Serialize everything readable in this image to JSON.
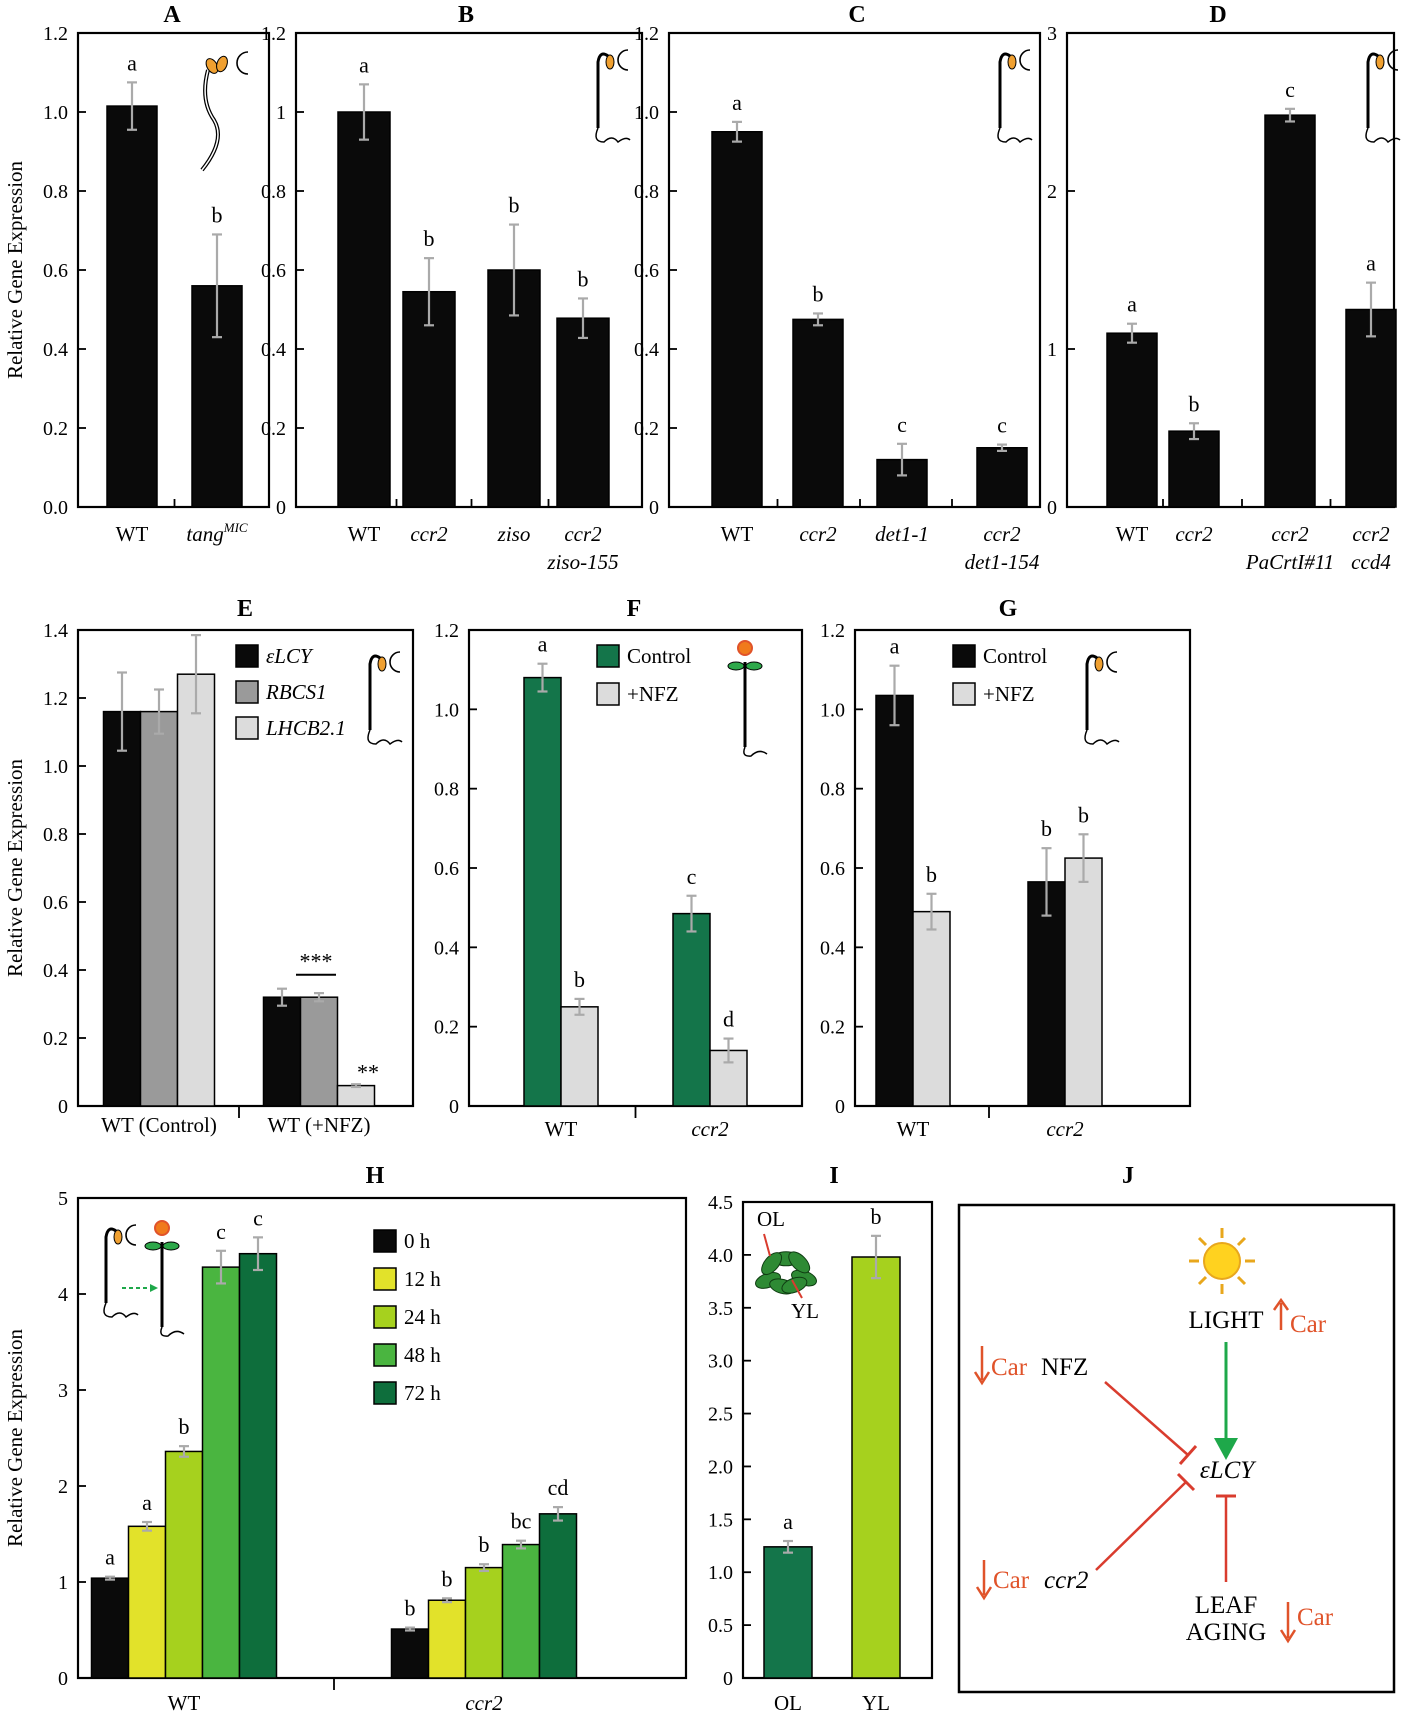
{
  "colors": {
    "black": "#0a0a0a",
    "dark_gray": "#9a9a9a",
    "light_gray": "#dcdcdc",
    "green": "#14754a",
    "yellow": "#e2e22a",
    "yellow_green": "#a6d11e",
    "mid_green": "#4ab540",
    "dark_green": "#0e6e3c",
    "arrow_green": "#1ea84a",
    "inhibit_red": "#d93c2e",
    "car_orange": "#e0532a",
    "error_bar": "#aaaaaa"
  },
  "chart_data": [
    {
      "panel": "A",
      "type": "bar",
      "ylabel": "Relative  Gene Expression",
      "ylim": [
        0,
        1.2
      ],
      "yticks": [
        "0.0",
        "0.2",
        "0.4",
        "0.6",
        "0.8",
        "1.0",
        "1.2"
      ],
      "categories": [
        "WT",
        "tang"
      ],
      "category_sup": [
        "",
        "MIC"
      ],
      "category_italic": [
        false,
        true
      ],
      "values": [
        1.015,
        0.56
      ],
      "errors": [
        0.06,
        0.13
      ],
      "letters": [
        "a",
        "b"
      ],
      "colors": [
        "#0a0a0a",
        "#0a0a0a"
      ],
      "icon": "etiolated-seedling-icon"
    },
    {
      "panel": "B",
      "type": "bar",
      "ylim": [
        0,
        1.2
      ],
      "yticks": [
        "0",
        "0.2",
        "0.4",
        "0.6",
        "0.8",
        "1",
        "1.2"
      ],
      "categories": [
        "WT",
        "ccr2",
        "ziso",
        "ccr2\nziso-155"
      ],
      "category_italic": [
        false,
        true,
        true,
        true
      ],
      "values": [
        1.0,
        0.545,
        0.6,
        0.478
      ],
      "errors": [
        0.07,
        0.085,
        0.115,
        0.05
      ],
      "letters": [
        "a",
        "b",
        "b",
        "b"
      ],
      "colors": [
        "#0a0a0a",
        "#0a0a0a",
        "#0a0a0a",
        "#0a0a0a"
      ],
      "icon": "dark-grown-seedling-icon"
    },
    {
      "panel": "C",
      "type": "bar",
      "ylim": [
        0,
        1.2
      ],
      "yticks": [
        "0",
        "0.2",
        "0.4",
        "0.6",
        "0.8",
        "1.0",
        "1.2"
      ],
      "categories": [
        "WT",
        "ccr2",
        "det1-1",
        "ccr2\ndet1-154"
      ],
      "category_italic": [
        false,
        true,
        true,
        true
      ],
      "values": [
        0.95,
        0.475,
        0.12,
        0.15
      ],
      "errors": [
        0.025,
        0.015,
        0.04,
        0.008
      ],
      "letters": [
        "a",
        "b",
        "c",
        "c"
      ],
      "colors": [
        "#0a0a0a",
        "#0a0a0a",
        "#0a0a0a",
        "#0a0a0a"
      ],
      "icon": "dark-grown-seedling-icon"
    },
    {
      "panel": "D",
      "type": "bar",
      "ylim": [
        0,
        3
      ],
      "yticks": [
        "0",
        "1",
        "2",
        "3"
      ],
      "categories": [
        "WT",
        "ccr2",
        "ccr2\nPaCrtI#11",
        "ccr2\nccd4"
      ],
      "category_italic": [
        false,
        true,
        true,
        true
      ],
      "values": [
        1.1,
        0.48,
        2.48,
        1.25
      ],
      "errors": [
        0.06,
        0.05,
        0.04,
        0.17
      ],
      "letters": [
        "a",
        "b",
        "c",
        "a"
      ],
      "colors": [
        "#0a0a0a",
        "#0a0a0a",
        "#0a0a0a",
        "#0a0a0a"
      ],
      "icon": "dark-grown-seedling-icon"
    },
    {
      "panel": "E",
      "type": "bar",
      "ylabel": "Relative Gene Expression",
      "ylim": [
        0,
        1.4
      ],
      "yticks": [
        "0",
        "0.2",
        "0.4",
        "0.6",
        "0.8",
        "1.0",
        "1.2",
        "1.4"
      ],
      "categories": [
        "WT (Control)",
        "WT (+NFZ)"
      ],
      "series": [
        {
          "name": "εLCY",
          "values": [
            1.16,
            0.32
          ],
          "errors": [
            0.115,
            0.025
          ],
          "color": "#0a0a0a"
        },
        {
          "name": "RBCS1",
          "values": [
            1.16,
            0.32
          ],
          "errors": [
            0.065,
            0.012
          ],
          "color": "#9a9a9a"
        },
        {
          "name": "LHCB2.1",
          "values": [
            1.27,
            0.06
          ],
          "errors": [
            0.115,
            0.004
          ],
          "color": "#dcdcdc"
        }
      ],
      "annotations": [
        "***",
        "**"
      ],
      "icon": "dark-grown-seedling-icon"
    },
    {
      "panel": "F",
      "type": "bar",
      "ylim": [
        0,
        1.2
      ],
      "yticks": [
        "0",
        "0.2",
        "0.4",
        "0.6",
        "0.8",
        "1.0",
        "1.2"
      ],
      "categories": [
        "WT",
        "ccr2"
      ],
      "category_italic": [
        false,
        true
      ],
      "series": [
        {
          "name": "Control",
          "values": [
            1.08,
            0.485
          ],
          "errors": [
            0.035,
            0.045
          ],
          "color": "#14754a",
          "letters": [
            "a",
            "c"
          ]
        },
        {
          "name": "+NFZ",
          "values": [
            0.25,
            0.14
          ],
          "errors": [
            0.02,
            0.03
          ],
          "color": "#dcdcdc",
          "letters": [
            "b",
            "d"
          ]
        }
      ],
      "icon": "light-grown-seedling-icon"
    },
    {
      "panel": "G",
      "type": "bar",
      "ylim": [
        0,
        1.2
      ],
      "yticks": [
        "0",
        "0.2",
        "0.4",
        "0.6",
        "0.8",
        "1.0",
        "1.2"
      ],
      "categories": [
        "WT",
        "ccr2"
      ],
      "category_italic": [
        false,
        true
      ],
      "series": [
        {
          "name": "Control",
          "values": [
            1.035,
            0.565
          ],
          "errors": [
            0.075,
            0.085
          ],
          "color": "#0a0a0a",
          "letters": [
            "a",
            "b"
          ]
        },
        {
          "name": "+NFZ",
          "values": [
            0.49,
            0.625
          ],
          "errors": [
            0.045,
            0.06
          ],
          "color": "#dcdcdc",
          "letters": [
            "b",
            "b"
          ]
        }
      ],
      "icon": "dark-grown-seedling-icon"
    },
    {
      "panel": "H",
      "type": "bar",
      "ylabel": "Relative Gene Expression",
      "ylim": [
        0,
        5
      ],
      "yticks": [
        "0",
        "1",
        "2",
        "3",
        "4",
        "5"
      ],
      "categories": [
        "WT",
        "ccr2"
      ],
      "category_italic": [
        false,
        true
      ],
      "series": [
        {
          "name": "0 h",
          "values": [
            1.04,
            0.51
          ],
          "errors": [
            0.015,
            0.015
          ],
          "color": "#0a0a0a",
          "letters": [
            "a",
            "b"
          ]
        },
        {
          "name": "12 h",
          "values": [
            1.58,
            0.81
          ],
          "errors": [
            0.045,
            0.02
          ],
          "color": "#e2e22a",
          "letters": [
            "a",
            "b"
          ]
        },
        {
          "name": "24 h",
          "values": [
            2.36,
            1.15
          ],
          "errors": [
            0.055,
            0.035
          ],
          "color": "#a6d11e",
          "letters": [
            "b",
            "b"
          ]
        },
        {
          "name": "48 h",
          "values": [
            4.28,
            1.39
          ],
          "errors": [
            0.17,
            0.04
          ],
          "color": "#4ab540",
          "letters": [
            "c",
            "bc"
          ]
        },
        {
          "name": "72 h",
          "values": [
            4.42,
            1.71
          ],
          "errors": [
            0.17,
            0.07
          ],
          "color": "#0e6e3c",
          "letters": [
            "c",
            "cd"
          ]
        }
      ],
      "icon": "de-etiolation-icon"
    },
    {
      "panel": "I",
      "type": "bar",
      "ylim": [
        0,
        4.5
      ],
      "yticks": [
        "0",
        "0.5",
        "1.0",
        "1.5",
        "2.0",
        "2.5",
        "3.0",
        "3.5",
        "4.0",
        "4.5"
      ],
      "categories": [
        "OL",
        "YL"
      ],
      "values": [
        1.24,
        3.98
      ],
      "errors": [
        0.055,
        0.2
      ],
      "letters": [
        "a",
        "b"
      ],
      "colors": [
        "#14754a",
        "#a6d11e"
      ],
      "inset_labels": [
        "OL",
        "YL"
      ],
      "icon": "rosette-plant-icon"
    }
  ],
  "diagram": {
    "panel": "J",
    "sun_icon": "sun-icon",
    "nodes": {
      "light": "LIGHT",
      "nfz": "NFZ",
      "elcy": "εLCY",
      "ccr2": "ccr2",
      "leaf_line1": "LEAF",
      "leaf_line2": "AGING"
    },
    "car_label": "Car",
    "edges": [
      "LIGHT activates εLCY",
      "NFZ inhibits εLCY",
      "ccr2 inhibits εLCY",
      "LEAF AGING inhibits εLCY"
    ]
  }
}
